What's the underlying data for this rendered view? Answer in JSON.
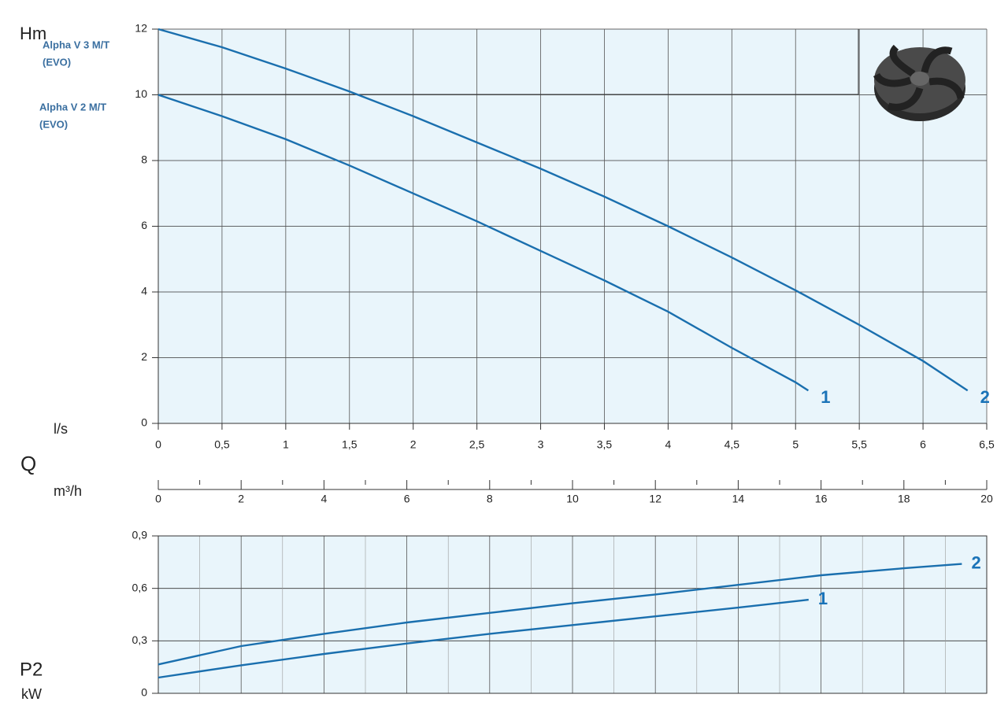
{
  "chart_data": [
    {
      "type": "line",
      "ylabel": "Hm",
      "xlabel": "l/s",
      "xlim": [
        0,
        6.5
      ],
      "ylim": [
        0,
        12
      ],
      "xticks": [
        0,
        {
          "value": 0.5,
          "label": "0,5"
        },
        1,
        {
          "value": 1.5,
          "label": "1,5"
        },
        2,
        {
          "value": 2.5,
          "label": "2,5"
        },
        3,
        {
          "value": 3.5,
          "label": "3,5"
        },
        4,
        {
          "value": 4.5,
          "label": "4,5"
        },
        5,
        {
          "value": 5.5,
          "label": "5,5"
        },
        6,
        {
          "value": 6.5,
          "label": "6,5"
        }
      ],
      "yticks": [
        0,
        2,
        4,
        6,
        8,
        10,
        12
      ],
      "grid": true,
      "annotations": [
        [
          "Alpha V 3 M/T",
          "(EVO)"
        ],
        [
          "Alpha V 2 M/T",
          "(EVO)"
        ]
      ],
      "series": [
        {
          "name": "1",
          "color": "#1a6fae",
          "x": [
            0,
            0.5,
            1,
            1.5,
            2,
            2.5,
            3,
            3.5,
            4,
            4.5,
            5,
            5.1
          ],
          "values": [
            10,
            9.35,
            8.65,
            7.85,
            7.0,
            6.15,
            5.25,
            4.35,
            3.4,
            2.3,
            1.25,
            1.0
          ]
        },
        {
          "name": "2",
          "color": "#1a6fae",
          "x": [
            0,
            0.5,
            1,
            1.5,
            2,
            2.5,
            3,
            3.5,
            4,
            4.5,
            5,
            5.5,
            6,
            6.35
          ],
          "values": [
            12,
            11.45,
            10.8,
            10.1,
            9.35,
            8.55,
            7.75,
            6.9,
            6.0,
            5.05,
            4.05,
            3.0,
            1.9,
            1.0
          ]
        }
      ]
    },
    {
      "type": "line",
      "xtitle": "Q",
      "xlabel": "m³/h",
      "ylabel": "P2",
      "yunit": "kW",
      "xlim": [
        0,
        20
      ],
      "ylim": [
        0,
        0.9
      ],
      "xticks": [
        0,
        2,
        4,
        6,
        8,
        10,
        12,
        14,
        16,
        18,
        20
      ],
      "yticks": [
        0,
        {
          "value": 0.3,
          "label": "0,3"
        },
        {
          "value": 0.6,
          "label": "0,6"
        },
        {
          "value": 0.9,
          "label": "0,9"
        }
      ],
      "grid": true,
      "series": [
        {
          "name": "1",
          "color": "#1a6fae",
          "x": [
            0,
            2,
            4,
            6,
            8,
            10,
            12,
            14,
            15.7
          ],
          "values": [
            0.09,
            0.16,
            0.225,
            0.285,
            0.34,
            0.39,
            0.44,
            0.49,
            0.535
          ]
        },
        {
          "name": "2",
          "color": "#1a6fae",
          "x": [
            0,
            2,
            4,
            6,
            8,
            10,
            12,
            14,
            16,
            18,
            19.4
          ],
          "values": [
            0.165,
            0.27,
            0.34,
            0.405,
            0.46,
            0.515,
            0.565,
            0.62,
            0.675,
            0.715,
            0.74
          ]
        }
      ]
    }
  ]
}
